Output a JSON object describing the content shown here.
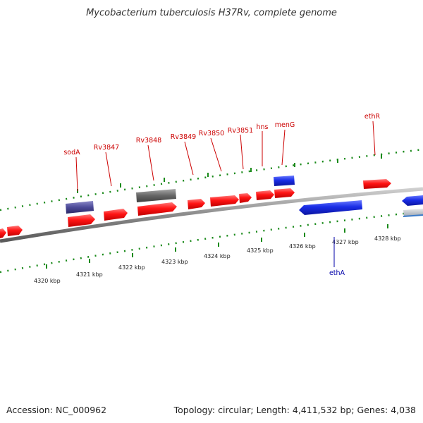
{
  "title": "Mycobacterium tuberculosis H37Rv, complete genome",
  "footer": {
    "accession": "Accession: NC_000962",
    "summary": "Topology: circular; Length: 4,411,532 bp; Genes: 4,038"
  },
  "colors": {
    "forward_gene": "#ff1a1a",
    "reverse_gene": "#1a2de6",
    "highlight_forward": "#4c4a98",
    "highlight_grey": "#666666",
    "backbone": "#8a8a8a",
    "tick": "#1a8a1a",
    "label_forward": "#cc0000",
    "label_reverse": "#0000aa"
  },
  "scale_labels": [
    "4320 kbp",
    "4321 kbp",
    "4322 kbp",
    "4323 kbp",
    "4324 kbp",
    "4325 kbp",
    "4326 kbp",
    "4327 kbp",
    "4328 kbp"
  ],
  "gene_labels": [
    {
      "name": "sodA",
      "strand": "forward"
    },
    {
      "name": "Rv3847",
      "strand": "forward"
    },
    {
      "name": "Rv3848",
      "strand": "forward"
    },
    {
      "name": "Rv3849",
      "strand": "forward"
    },
    {
      "name": "Rv3850",
      "strand": "forward"
    },
    {
      "name": "Rv3851",
      "strand": "forward"
    },
    {
      "name": "hns",
      "strand": "forward"
    },
    {
      "name": "menG",
      "strand": "forward"
    },
    {
      "name": "ethR",
      "strand": "forward"
    },
    {
      "name": "ethA",
      "strand": "reverse"
    }
  ]
}
